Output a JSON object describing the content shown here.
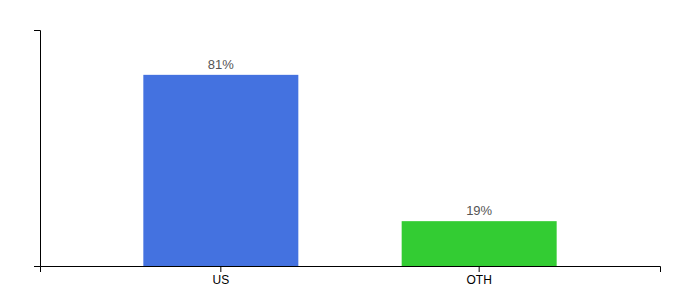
{
  "chart_data": {
    "type": "bar",
    "categories": [
      "US",
      "OTH"
    ],
    "values": [
      81,
      19
    ],
    "value_labels": [
      "81%",
      "19%"
    ],
    "colors": [
      "#4472e0",
      "#33cc33"
    ],
    "ylim": [
      0,
      100
    ],
    "tick_labels": "x",
    "data_labels": true
  }
}
